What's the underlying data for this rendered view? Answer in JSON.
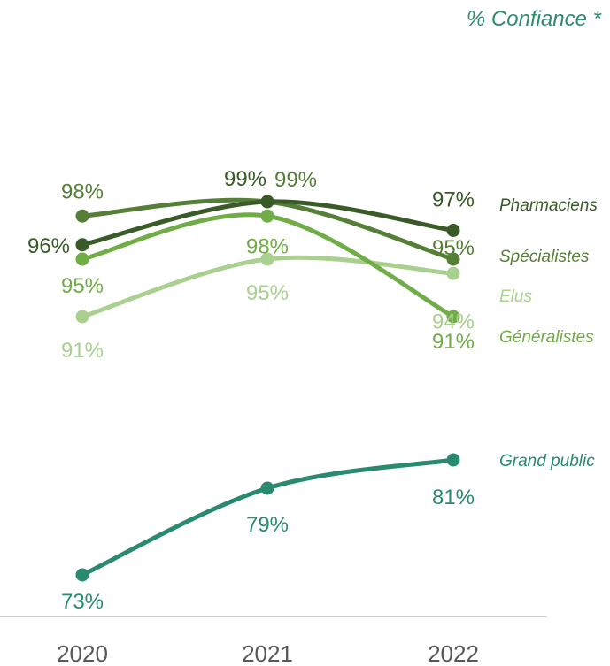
{
  "chart_data": {
    "type": "line",
    "unit_label": "% Confiance *",
    "x": [
      "2020",
      "2021",
      "2022"
    ],
    "series": [
      {
        "name": "Pharmaciens",
        "values": [
          96,
          99,
          97
        ],
        "labels": [
          "96%",
          "99%",
          "97%"
        ],
        "color": "#3a5a28"
      },
      {
        "name": "Spécialistes",
        "values": [
          98,
          99,
          95
        ],
        "labels": [
          "98%",
          "99%",
          "95%"
        ],
        "color": "#557f37"
      },
      {
        "name": "Elus",
        "values": [
          91,
          95,
          94
        ],
        "labels": [
          "91%",
          "95%",
          "94%"
        ],
        "color": "#a9d08e"
      },
      {
        "name": "Généralistes",
        "values": [
          95,
          98,
          91
        ],
        "labels": [
          "95%",
          "98%",
          "91%"
        ],
        "color": "#70ad47"
      },
      {
        "name": "Grand public",
        "values": [
          73,
          79,
          81
        ],
        "labels": [
          "73%",
          "79%",
          "81%"
        ],
        "color": "#2a8a70"
      }
    ],
    "grid": false,
    "legend": "right-of-lines"
  }
}
